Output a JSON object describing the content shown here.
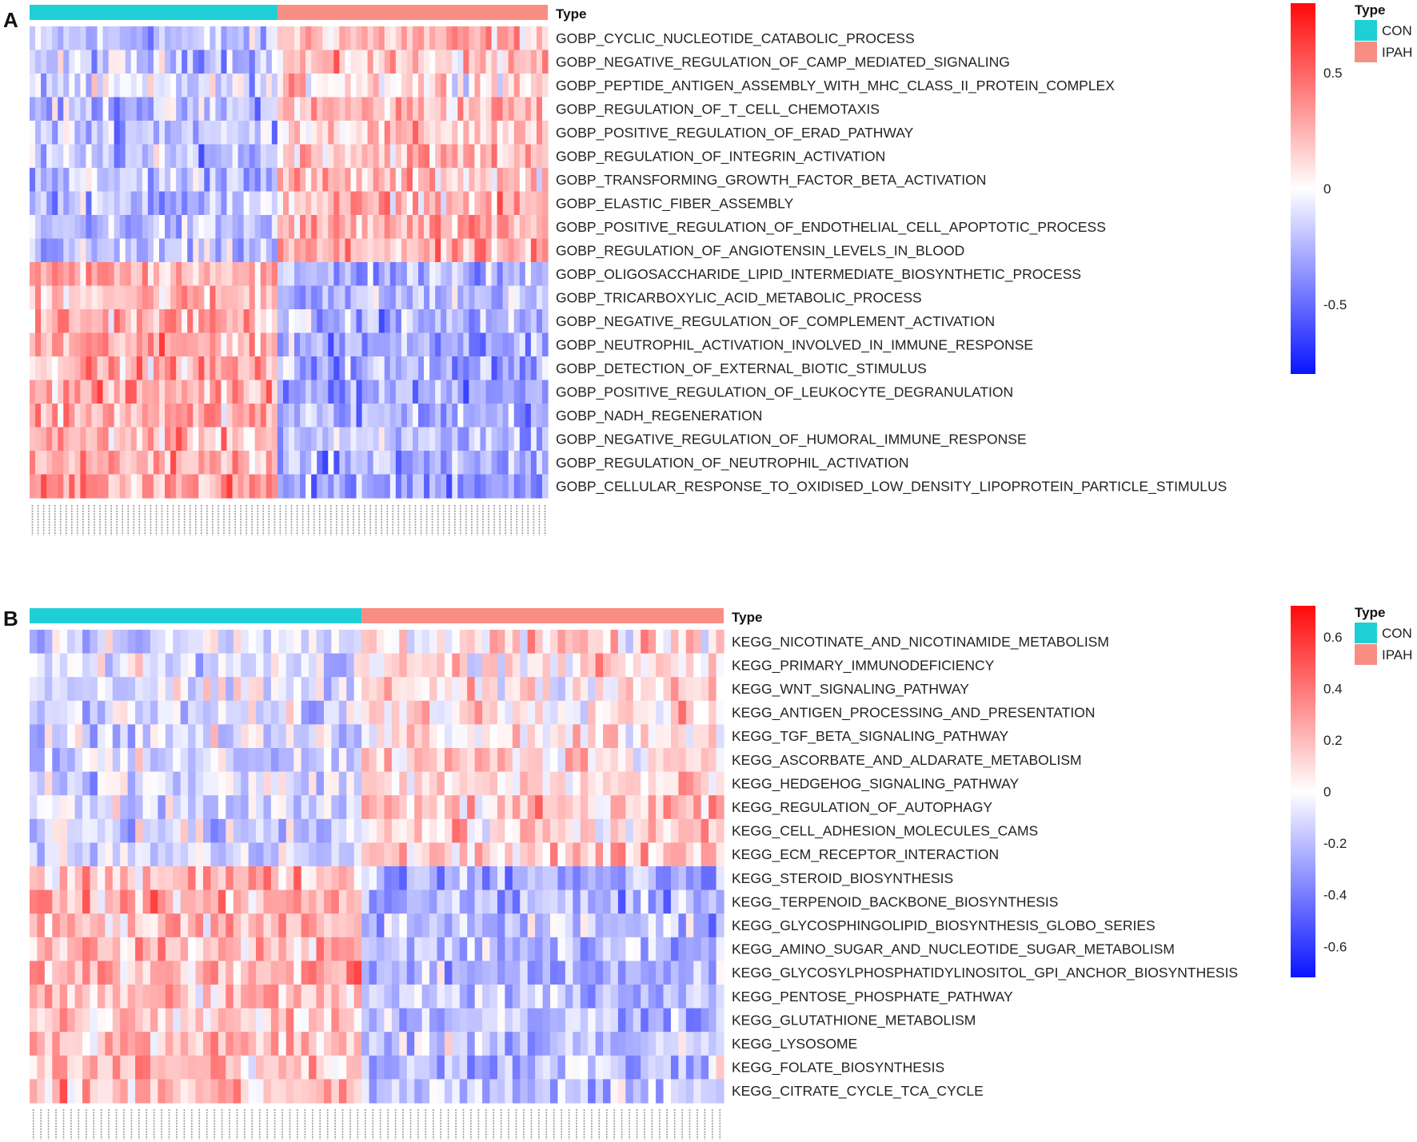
{
  "chart_data": [
    {
      "type": "heatmap",
      "panel_label": "A",
      "annotation_title": "Type",
      "legend_title": "Type",
      "groups": [
        {
          "name": "CON",
          "color": "#1fcfd6",
          "n_samples": 44
        },
        {
          "name": "IPAH",
          "color": "#f88d84",
          "n_samples": 48
        }
      ],
      "n_columns": 92,
      "rows": [
        "GOBP_CYCLIC_NUCLEOTIDE_CATABOLIC_PROCESS",
        "GOBP_NEGATIVE_REGULATION_OF_CAMP_MEDIATED_SIGNALING",
        "GOBP_PEPTIDE_ANTIGEN_ASSEMBLY_WITH_MHC_CLASS_II_PROTEIN_COMPLEX",
        "GOBP_REGULATION_OF_T_CELL_CHEMOTAXIS",
        "GOBP_POSITIVE_REGULATION_OF_ERAD_PATHWAY",
        "GOBP_REGULATION_OF_INTEGRIN_ACTIVATION",
        "GOBP_TRANSFORMING_GROWTH_FACTOR_BETA_ACTIVATION",
        "GOBP_ELASTIC_FIBER_ASSEMBLY",
        "GOBP_POSITIVE_REGULATION_OF_ENDOTHELIAL_CELL_APOPTOTIC_PROCESS",
        "GOBP_REGULATION_OF_ANGIOTENSIN_LEVELS_IN_BLOOD",
        "GOBP_OLIGOSACCHARIDE_LIPID_INTERMEDIATE_BIOSYNTHETIC_PROCESS",
        "GOBP_TRICARBOXYLIC_ACID_METABOLIC_PROCESS",
        "GOBP_NEGATIVE_REGULATION_OF_COMPLEMENT_ACTIVATION",
        "GOBP_NEUTROPHIL_ACTIVATION_INVOLVED_IN_IMMUNE_RESPONSE",
        "GOBP_DETECTION_OF_EXTERNAL_BIOTIC_STIMULUS",
        "GOBP_POSITIVE_REGULATION_OF_LEUKOCYTE_DEGRANULATION",
        "GOBP_NADH_REGENERATION",
        "GOBP_NEGATIVE_REGULATION_OF_HUMORAL_IMMUNE_RESPONSE",
        "GOBP_REGULATION_OF_NEUTROPHIL_ACTIVATION",
        "GOBP_CELLULAR_RESPONSE_TO_OXIDISED_LOW_DENSITY_LIPOPROTEIN_PARTICLE_STIMULUS"
      ],
      "row_trend": [
        0.25,
        0.2,
        0.15,
        0.25,
        0.2,
        0.25,
        0.2,
        0.25,
        0.25,
        0.25,
        -0.3,
        -0.25,
        -0.3,
        -0.3,
        -0.3,
        -0.3,
        -0.3,
        -0.25,
        -0.3,
        -0.35
      ],
      "value_range": [
        -0.8,
        0.8
      ],
      "colorbar_ticks": [
        {
          "value": 0.5,
          "label": "0.5"
        },
        {
          "value": 0,
          "label": "0"
        },
        {
          "value": -0.5,
          "label": "-0.5"
        }
      ],
      "colors": {
        "low": "#0a14ff",
        "mid": "#ffffff",
        "high": "#ff0a0a"
      }
    },
    {
      "type": "heatmap",
      "panel_label": "B",
      "annotation_title": "Type",
      "legend_title": "Type",
      "groups": [
        {
          "name": "CON",
          "color": "#1fcfd6",
          "n_samples": 44
        },
        {
          "name": "IPAH",
          "color": "#f88d84",
          "n_samples": 48
        }
      ],
      "n_columns": 92,
      "rows": [
        "KEGG_NICOTINATE_AND_NICOTINAMIDE_METABOLISM",
        "KEGG_PRIMARY_IMMUNODEFICIENCY",
        "KEGG_WNT_SIGNALING_PATHWAY",
        "KEGG_ANTIGEN_PROCESSING_AND_PRESENTATION",
        "KEGG_TGF_BETA_SIGNALING_PATHWAY",
        "KEGG_ASCORBATE_AND_ALDARATE_METABOLISM",
        "KEGG_HEDGEHOG_SIGNALING_PATHWAY",
        "KEGG_REGULATION_OF_AUTOPHAGY",
        "KEGG_CELL_ADHESION_MOLECULES_CAMS",
        "KEGG_ECM_RECEPTOR_INTERACTION",
        "KEGG_STEROID_BIOSYNTHESIS",
        "KEGG_TERPENOID_BACKBONE_BIOSYNTHESIS",
        "KEGG_GLYCOSPHINGOLIPID_BIOSYNTHESIS_GLOBO_SERIES",
        "KEGG_AMINO_SUGAR_AND_NUCLEOTIDE_SUGAR_METABOLISM",
        "KEGG_GLYCOSYLPHOSPHATIDYLINOSITOL_GPI_ANCHOR_BIOSYNTHESIS",
        "KEGG_PENTOSE_PHOSPHATE_PATHWAY",
        "KEGG_GLUTATHIONE_METABOLISM",
        "KEGG_LYSOSOME",
        "KEGG_FOLATE_BIOSYNTHESIS",
        "KEGG_CITRATE_CYCLE_TCA_CYCLE"
      ],
      "row_trend": [
        0.1,
        0.12,
        0.1,
        0.15,
        0.12,
        0.15,
        0.1,
        0.15,
        0.12,
        0.15,
        -0.25,
        -0.25,
        -0.2,
        -0.25,
        -0.25,
        -0.2,
        -0.2,
        -0.2,
        -0.2,
        -0.2
      ],
      "value_range": [
        -0.72,
        0.72
      ],
      "colorbar_ticks": [
        {
          "value": 0.6,
          "label": "0.6"
        },
        {
          "value": 0.4,
          "label": "0.4"
        },
        {
          "value": 0.2,
          "label": "0.2"
        },
        {
          "value": 0,
          "label": "0"
        },
        {
          "value": -0.2,
          "label": "-0.2"
        },
        {
          "value": -0.4,
          "label": "-0.4"
        },
        {
          "value": -0.6,
          "label": "-0.6"
        }
      ],
      "colors": {
        "low": "#0a14ff",
        "mid": "#ffffff",
        "high": "#ff0a0a"
      }
    }
  ]
}
